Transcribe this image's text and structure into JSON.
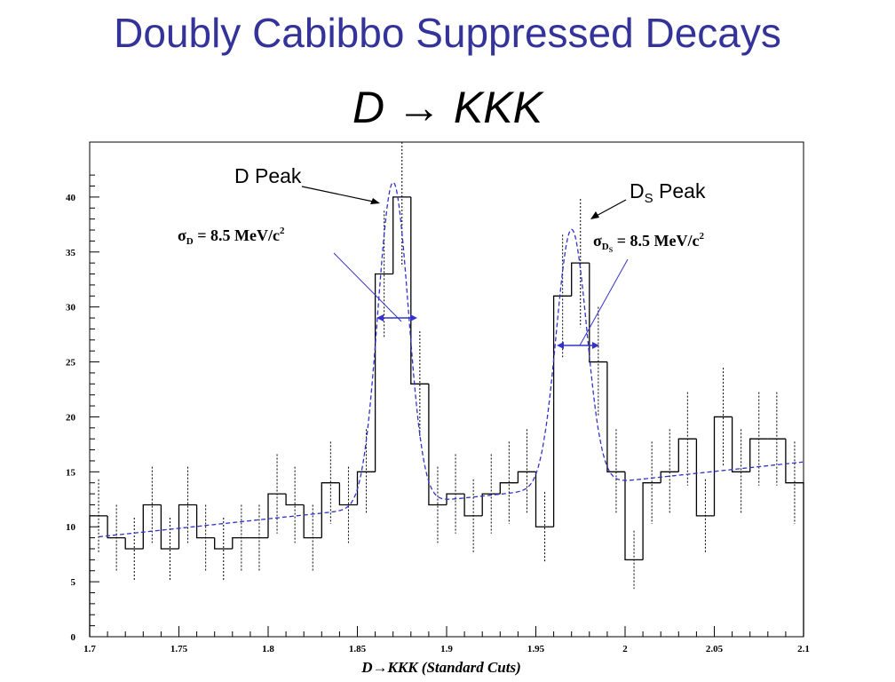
{
  "slide": {
    "title": "Doubly Cabibbo Suppressed Decays",
    "formula": "D → KKK"
  },
  "chart_data": {
    "type": "histogram",
    "title": "",
    "xlabel": "D→KKK (Standard Cuts)",
    "ylabel": "",
    "xlim": [
      1.7,
      2.1
    ],
    "ylim": [
      0,
      45
    ],
    "x_ticks": [
      "1.7",
      "1.75",
      "1.8",
      "1.85",
      "1.9",
      "1.95",
      "2",
      "2.05",
      "2.1"
    ],
    "y_ticks": [
      "0",
      "5",
      "10",
      "15",
      "20",
      "25",
      "30",
      "35",
      "40"
    ],
    "bin_width": 0.01,
    "bin_edges_start": 1.7,
    "counts": [
      11,
      9,
      8,
      12,
      8,
      12,
      9,
      8,
      9,
      9,
      13,
      12,
      9,
      14,
      12,
      15,
      33,
      40,
      23,
      12,
      13,
      11,
      13,
      14,
      15,
      10,
      31,
      34,
      25,
      15,
      7,
      14,
      15,
      18,
      11,
      20,
      15,
      18,
      18,
      14
    ],
    "fit_curve": {
      "style": "dashed",
      "color": "#3333cc",
      "background": {
        "x": [
          1.7,
          2.1
        ],
        "y": [
          9.0,
          15.9
        ]
      },
      "peaks": [
        {
          "center": 1.87,
          "sigma": 0.0085,
          "amplitude": 29.4
        },
        {
          "center": 1.97,
          "sigma": 0.0085,
          "amplitude": 23.4
        }
      ]
    },
    "annotations": [
      {
        "name": "D Peak",
        "sigma_label": "σD = 8.5 MeV/c2"
      },
      {
        "name": "DS Peak",
        "sigma_label": "σDS = 8.5 MeV/c2"
      }
    ]
  },
  "labels": {
    "d_peak": "D Peak",
    "ds_peak_main": "D",
    "ds_peak_sub": "S",
    "ds_peak_rest": " Peak",
    "sigma_d_main": "σ",
    "sigma_d_sub": "D",
    "sigma_d_rest": " = 8.5 MeV/c",
    "sigma_d_sup": "2",
    "sigma_ds_main": "σ",
    "sigma_ds_sub": "D",
    "sigma_ds_subsub": "S",
    "sigma_ds_rest": " = 8.5 MeV/c",
    "sigma_ds_sup": "2"
  },
  "colors": {
    "title": "#333399",
    "fit": "#3333cc",
    "histogram": "#000000"
  }
}
